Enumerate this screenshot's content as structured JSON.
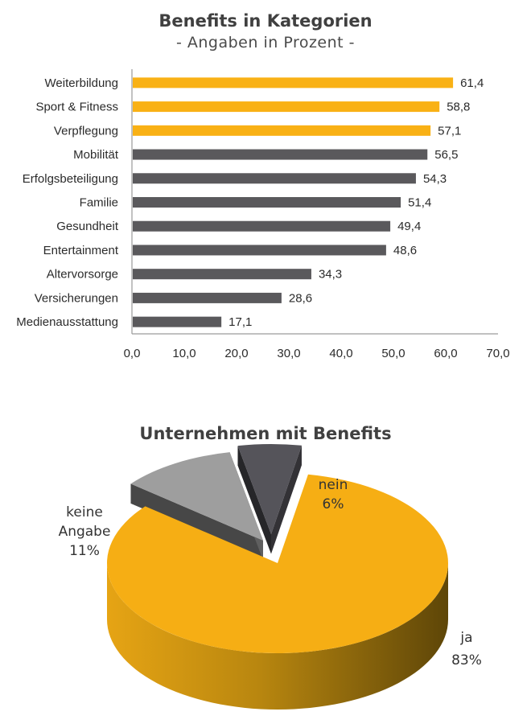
{
  "chart_data": [
    {
      "type": "bar",
      "orientation": "horizontal",
      "title": "Benefits in Kategorien",
      "subtitle": "- Angaben in Prozent -",
      "xlabel": "",
      "ylabel": "",
      "xlim": [
        0,
        70
      ],
      "xticks": [
        0,
        10,
        20,
        30,
        40,
        50,
        60,
        70
      ],
      "xtick_labels": [
        "0,0",
        "10,0",
        "20,0",
        "30,0",
        "40,0",
        "50,0",
        "60,0",
        "70,0"
      ],
      "grid": false,
      "categories": [
        "Weiterbildung",
        "Sport & Fitness",
        "Verpflegung",
        "Mobilität",
        "Erfolgsbeteiligung",
        "Familie",
        "Gesundheit",
        "Entertainment",
        "Altervorsorge",
        "Versicherungen",
        "Medienausstattung"
      ],
      "values": [
        61.4,
        58.8,
        57.1,
        56.5,
        54.3,
        51.4,
        49.4,
        48.6,
        34.3,
        28.6,
        17.1
      ],
      "value_labels": [
        "61,4",
        "58,8",
        "57,1",
        "56,5",
        "54,3",
        "51,4",
        "49,4",
        "48,6",
        "34,3",
        "28,6",
        "17,1"
      ],
      "highlight_top_n": 3,
      "colors": {
        "highlight": "#F9B115",
        "default": "#5A595C"
      }
    },
    {
      "type": "pie",
      "style": "3d-exploded",
      "title": "Unternehmen mit Benefits",
      "slices": [
        {
          "label": "ja",
          "value": 83,
          "value_label": "83%",
          "color": "#F6AE14"
        },
        {
          "label": "keine Angabe",
          "value": 11,
          "value_label": "11%",
          "color": "#9E9E9E"
        },
        {
          "label": "nein",
          "value": 6,
          "value_label": "6%",
          "color": "#55545A"
        }
      ]
    }
  ]
}
